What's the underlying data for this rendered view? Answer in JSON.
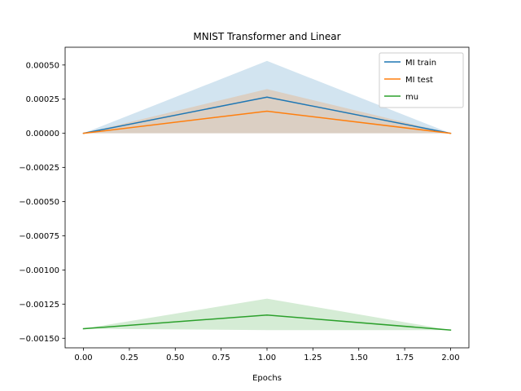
{
  "chart_data": {
    "type": "line",
    "title": "MNIST Transformer and Linear",
    "xlabel": "Epochs",
    "ylabel": "",
    "x": [
      0.0,
      1.0,
      2.0
    ],
    "xlim": [
      -0.1,
      2.1
    ],
    "ylim": [
      -0.00157,
      0.00063
    ],
    "xticks": [
      0.0,
      0.25,
      0.5,
      0.75,
      1.0,
      1.25,
      1.5,
      1.75,
      2.0
    ],
    "xtick_labels": [
      "0.00",
      "0.25",
      "0.50",
      "0.75",
      "1.00",
      "1.25",
      "1.50",
      "1.75",
      "2.00"
    ],
    "yticks": [
      0.0005,
      0.00025,
      0.0,
      -0.00025,
      -0.0005,
      -0.00075,
      -0.001,
      -0.00125,
      -0.0015
    ],
    "ytick_labels": [
      "0.00050",
      "0.00025",
      "0.00000",
      "−0.00025",
      "−0.00050",
      "−0.00075",
      "−0.00100",
      "−0.00125",
      "−0.00150"
    ],
    "grid": false,
    "legend_position": "top-right",
    "series": [
      {
        "name": "MI train",
        "color": "#1f77b4",
        "values": [
          0.0,
          0.000265,
          0.0
        ],
        "band_lower": [
          0.0,
          0.0,
          0.0
        ],
        "band_upper": [
          0.0,
          0.00053,
          0.0
        ]
      },
      {
        "name": "MI test",
        "color": "#ff7f0e",
        "values": [
          0.0,
          0.000162,
          0.0
        ],
        "band_lower": [
          0.0,
          0.0,
          0.0
        ],
        "band_upper": [
          0.0,
          0.000324,
          0.0
        ]
      },
      {
        "name": "mu",
        "color": "#2ca02c",
        "values": [
          -0.00143,
          -0.00133,
          -0.00144
        ],
        "band_lower": [
          -0.00143,
          -0.00144,
          -0.00144
        ],
        "band_upper": [
          -0.00143,
          -0.00121,
          -0.00144
        ]
      }
    ]
  }
}
